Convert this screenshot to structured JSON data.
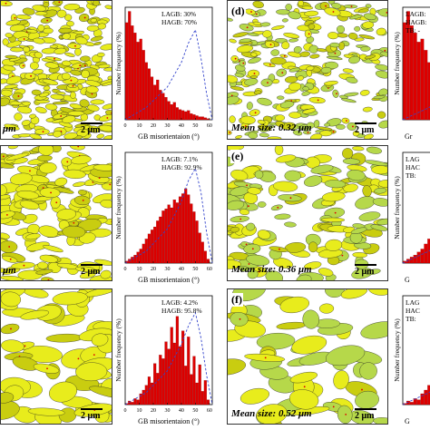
{
  "scale_bar": "2 μm",
  "colors": {
    "grain": "#e8ec1c",
    "grain_dark": "#c9cd10",
    "grain_green": "#b6d84a",
    "bar": "#dd0000",
    "dashed": "#3344cc",
    "boundary": "#222222"
  },
  "rows": [
    {
      "left_label": "μm",
      "mid_label": "(d)",
      "mean_size": "Mean size: 0.32 μm",
      "hist": {
        "annot": [
          "LAGB: 30%",
          "HAGB: 70%"
        ]
      },
      "right_annot": [
        "LAGB:",
        "HAGB:",
        "TB: -"
      ],
      "right_xlabel": "Gr"
    },
    {
      "left_label": "μm",
      "mid_label": "(e)",
      "mean_size": "Mean size: 0.36 μm",
      "hist": {
        "annot": [
          "LAGB: 7.1%",
          "HAGB: 92.9%"
        ]
      },
      "right_annot": [
        "LAG",
        "HAC",
        "TB:"
      ],
      "right_xlabel": "G"
    },
    {
      "left_label": "μm",
      "mid_label": "(f)",
      "mean_size": "Mean size: 0.52 μm",
      "hist": {
        "annot": [
          "LAGB: 4.2%",
          "HAGB: 95.8%"
        ]
      },
      "right_annot": [
        "LAG",
        "HAC",
        "TB:"
      ],
      "right_xlabel": "G"
    }
  ],
  "chart_data": [
    {
      "type": "bar",
      "ylabel": "Number frequency (%)",
      "xlabel": "GB misorientaion (°)",
      "xlim": [
        0,
        62
      ],
      "ylim": [
        0,
        11
      ],
      "xticks": [
        0,
        10,
        20,
        30,
        40,
        50,
        60
      ],
      "bins": [
        2,
        4,
        6,
        8,
        10,
        12,
        14,
        16,
        18,
        20,
        22,
        24,
        26,
        28,
        30,
        32,
        34,
        36,
        38,
        40,
        42,
        44,
        46,
        48,
        50,
        52,
        54,
        56,
        58,
        60
      ],
      "values": [
        9.5,
        10.6,
        9.2,
        8.5,
        7.6,
        7.9,
        6.8,
        5.6,
        5.0,
        4.2,
        3.4,
        3.9,
        2.9,
        2.6,
        2.2,
        1.8,
        1.5,
        1.7,
        1.2,
        1.0,
        0.9,
        0.8,
        0.9,
        0.6,
        0.5,
        0.4,
        0.3,
        0.3,
        0.2,
        0.1
      ],
      "dashed": [
        [
          0,
          0
        ],
        [
          15,
          1.2
        ],
        [
          30,
          3.2
        ],
        [
          40,
          5.6
        ],
        [
          45,
          7.5
        ],
        [
          50,
          8.8
        ],
        [
          54,
          6.0
        ],
        [
          58,
          2.5
        ],
        [
          62,
          0
        ]
      ]
    },
    {
      "type": "bar",
      "ylabel": "Number frequency (%)",
      "xlabel": "GB misorientaion (°)",
      "xlim": [
        0,
        62
      ],
      "ylim": [
        0,
        11
      ],
      "xticks": [
        0,
        10,
        20,
        30,
        40,
        50,
        60
      ],
      "bins": [
        2,
        4,
        6,
        8,
        10,
        12,
        14,
        16,
        18,
        20,
        22,
        24,
        26,
        28,
        30,
        32,
        34,
        36,
        38,
        40,
        42,
        44,
        46,
        48,
        50,
        52,
        54,
        56,
        58,
        60
      ],
      "values": [
        0.2,
        0.4,
        0.6,
        0.8,
        1.1,
        1.4,
        1.9,
        2.4,
        2.9,
        3.3,
        3.6,
        4.2,
        4.6,
        5.2,
        5.4,
        5.8,
        5.5,
        6.3,
        6.0,
        6.6,
        6.9,
        7.4,
        6.8,
        5.9,
        5.1,
        4.2,
        3.0,
        2.1,
        1.2,
        0.4
      ],
      "dashed": [
        [
          0,
          0
        ],
        [
          15,
          1.2
        ],
        [
          30,
          3.4
        ],
        [
          40,
          6.1
        ],
        [
          45,
          8.2
        ],
        [
          50,
          9.4
        ],
        [
          54,
          7.0
        ],
        [
          58,
          3.0
        ],
        [
          62,
          0
        ]
      ]
    },
    {
      "type": "bar",
      "ylabel": "Number frequency (%)",
      "xlabel": "GB misorientaion (°)",
      "xlim": [
        0,
        62
      ],
      "ylim": [
        0,
        9
      ],
      "xticks": [
        0,
        10,
        20,
        30,
        40,
        50,
        60
      ],
      "bins": [
        2,
        4,
        6,
        8,
        10,
        12,
        14,
        16,
        18,
        20,
        22,
        24,
        26,
        28,
        30,
        32,
        34,
        36,
        38,
        40,
        42,
        44,
        46,
        48,
        50,
        52,
        54,
        56,
        58,
        60
      ],
      "values": [
        0.1,
        0.3,
        0.2,
        0.5,
        0.4,
        0.9,
        1.2,
        1.6,
        2.3,
        1.8,
        3.4,
        2.6,
        4.1,
        3.8,
        5.2,
        4.6,
        6.4,
        5.1,
        7.3,
        4.8,
        6.1,
        3.2,
        5.6,
        2.5,
        4.0,
        1.8,
        3.3,
        1.1,
        2.0,
        0.4
      ],
      "dashed": [
        [
          0,
          0
        ],
        [
          15,
          1.0
        ],
        [
          30,
          2.8
        ],
        [
          40,
          5.0
        ],
        [
          45,
          6.5
        ],
        [
          50,
          7.6
        ],
        [
          54,
          5.5
        ],
        [
          58,
          2.4
        ],
        [
          62,
          0
        ]
      ]
    }
  ]
}
